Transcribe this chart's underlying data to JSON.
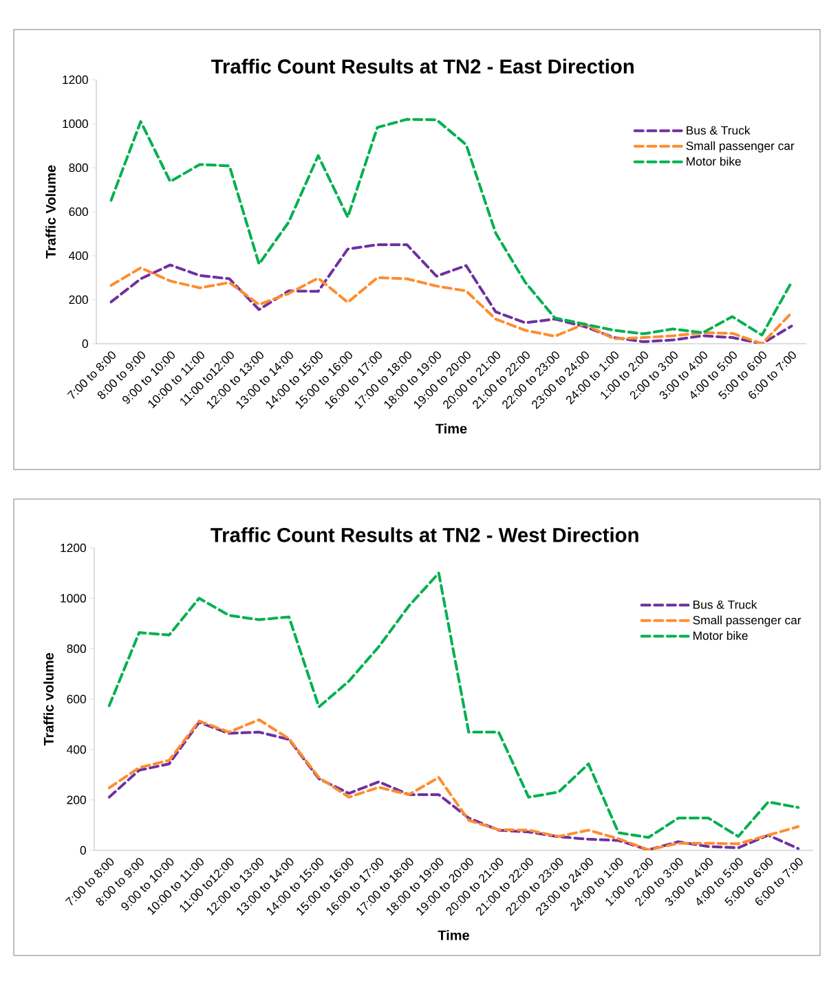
{
  "chart_data": [
    {
      "type": "line",
      "title": "Traffic Count Results at TN2 - East Direction",
      "xlabel": "Time",
      "ylabel": "Traffic Volume",
      "categories": [
        "7:00 to 8:00",
        "8:00 to 9:00",
        "9:00 to 10:00",
        "10:00 to 11:00",
        "11:00 to12:00",
        "12:00 to 13:00",
        "13:00 to 14:00",
        "14:00 to 15:00",
        "15:00 to 16:00",
        "16:00 to 17:00",
        "17:00 to 18:00",
        "18:00 to 19:00",
        "19:00 to 20:00",
        "20:00 to 21:00",
        "21:00 to 22:00",
        "22:00 to 23:00",
        "23:00 to 24:00",
        "24:00 to 1:00",
        "1:00 to 2:00",
        "2:00 to 3:00",
        "3:00 to 4:00",
        "4:00 to 5:00",
        "5:00 to 6:00",
        "6:00 to 7:00"
      ],
      "series": [
        {
          "name": "Bus & Truck",
          "color": "#7030a0",
          "values": [
            190,
            295,
            358,
            310,
            295,
            155,
            240,
            238,
            430,
            450,
            450,
            307,
            355,
            145,
            95,
            112,
            78,
            28,
            9,
            17,
            36,
            28,
            0,
            80
          ]
        },
        {
          "name": "Small passenger car",
          "color": "#ff8c2e",
          "values": [
            265,
            345,
            285,
            254,
            278,
            178,
            228,
            298,
            188,
            300,
            295,
            262,
            240,
            112,
            61,
            34,
            89,
            22,
            28,
            36,
            50,
            47,
            0,
            140
          ]
        },
        {
          "name": "Motor bike",
          "color": "#00b050",
          "values": [
            652,
            1010,
            737,
            815,
            808,
            362,
            552,
            855,
            575,
            983,
            1020,
            1018,
            905,
            503,
            279,
            117,
            89,
            61,
            45,
            67,
            50,
            123,
            39,
            279
          ]
        }
      ],
      "ylim": [
        0,
        1200
      ],
      "yticks": [
        0,
        200,
        400,
        600,
        800,
        1000,
        1200
      ],
      "legend": "top right",
      "line_style": "dashed",
      "marker": "none"
    },
    {
      "type": "line",
      "title": "Traffic Count Results at TN2 - West Direction",
      "xlabel": "Time",
      "ylabel": "Traffic volume",
      "categories": [
        "7:00 to 8:00",
        "8:00 to 9:00",
        "9:00 to 10:00",
        "10:00 to 11:00",
        "11:00 to12:00",
        "12:00 to 13:00",
        "13:00 to 14:00",
        "14:00 to 15:00",
        "15:00 to 16:00",
        "16:00 to 17:00",
        "17:00 to 18:00",
        "18:00 to 19:00",
        "19:00 to 20:00",
        "20:00 to 21:00",
        "21:00 to 22:00",
        "22:00 to 23:00",
        "23:00 to 24:00",
        "24:00 to 1:00",
        "1:00 to 2:00",
        "2:00 to 3:00",
        "3:00 to 4:00",
        "4:00 to 5:00",
        "5:00 to 6:00",
        "6:00 to 7:00"
      ],
      "series": [
        {
          "name": "Bus & Truck",
          "color": "#7030a0",
          "values": [
            211,
            318,
            343,
            508,
            464,
            469,
            440,
            284,
            226,
            272,
            221,
            221,
            128,
            80,
            73,
            54,
            44,
            39,
            2,
            34,
            15,
            10,
            60,
            7
          ]
        },
        {
          "name": "Small passenger car",
          "color": "#ff8c2e",
          "values": [
            248,
            328,
            357,
            513,
            469,
            518,
            443,
            289,
            211,
            250,
            221,
            289,
            119,
            82,
            80,
            55,
            80,
            46,
            2,
            28,
            28,
            26,
            60,
            94
          ]
        },
        {
          "name": "Motor bike",
          "color": "#00b050",
          "values": [
            574,
            864,
            854,
            1000,
            932,
            915,
            926,
            569,
            671,
            808,
            969,
            1100,
            469,
            469,
            211,
            231,
            343,
            70,
            51,
            128,
            128,
            55,
            192,
            170
          ]
        }
      ],
      "ylim": [
        0,
        1200
      ],
      "yticks": [
        0,
        200,
        400,
        600,
        800,
        1000,
        1200
      ],
      "legend": "top right",
      "line_style": "dashed",
      "marker": "none"
    }
  ]
}
